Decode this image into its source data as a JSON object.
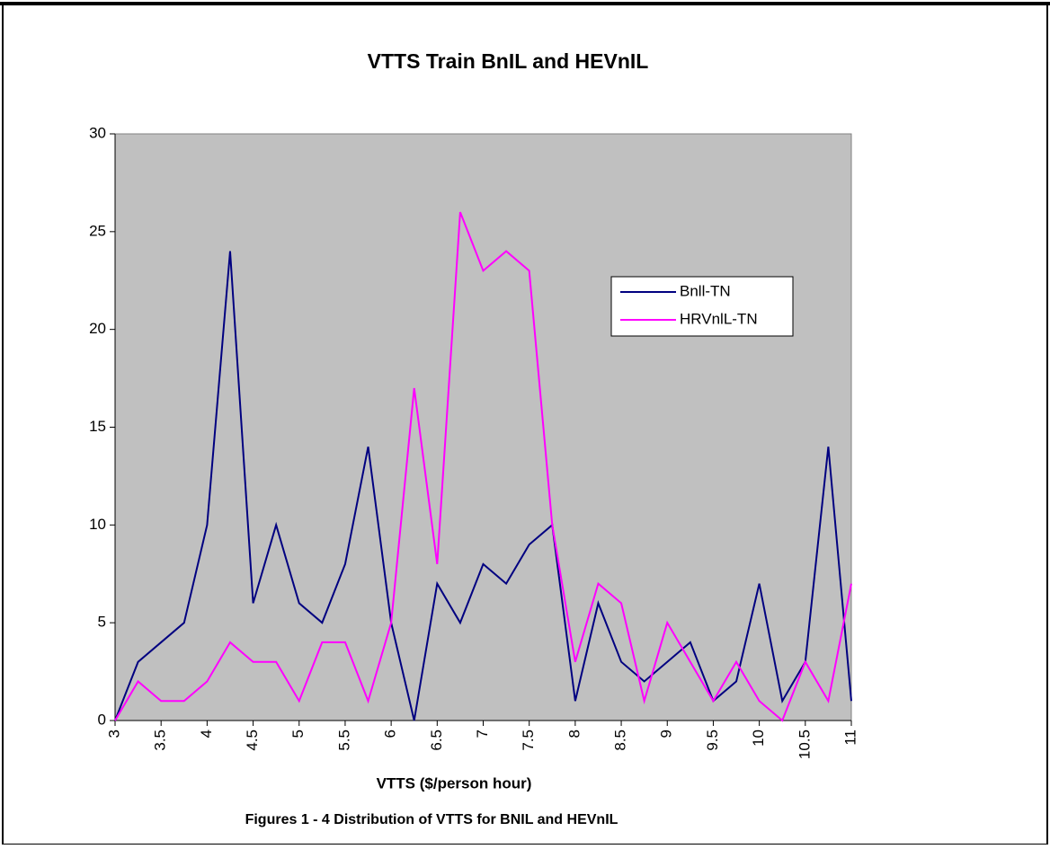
{
  "chart_data": {
    "type": "line",
    "title": "VTTS Train BnIL and HEVnIL",
    "x_label": "VTTS ($/person hour)",
    "x": [
      3,
      3.25,
      3.5,
      3.75,
      4,
      4.25,
      4.5,
      4.75,
      5,
      5.25,
      5.5,
      5.75,
      6,
      6.25,
      6.5,
      6.75,
      7,
      7.25,
      7.5,
      7.75,
      8,
      8.25,
      8.5,
      8.75,
      9,
      9.25,
      9.5,
      9.75,
      10,
      10.25,
      10.5,
      10.75,
      11
    ],
    "series": [
      {
        "name": "Bnll-TN",
        "color": "#000080",
        "values": [
          0,
          3,
          4,
          5,
          10,
          24,
          6,
          10,
          6,
          5,
          8,
          14,
          5,
          0,
          7,
          5,
          8,
          7,
          9,
          10,
          1,
          6,
          3,
          2,
          3,
          4,
          1,
          2,
          7,
          1,
          3,
          14,
          1
        ]
      },
      {
        "name": "HRVnlL-TN",
        "color": "#ff00ff",
        "values": [
          0,
          2,
          1,
          1,
          2,
          4,
          3,
          3,
          1,
          4,
          4,
          1,
          5,
          17,
          8,
          26,
          23,
          24,
          23,
          10,
          3,
          7,
          6,
          1,
          5,
          3,
          1,
          3,
          1,
          0,
          3,
          1,
          7
        ]
      }
    ],
    "xlim": [
      3,
      11
    ],
    "xticks": [
      3,
      3.5,
      4,
      4.5,
      5,
      5.5,
      6,
      6.5,
      7,
      7.5,
      8,
      8.5,
      9,
      9.5,
      10,
      10.5,
      11
    ],
    "ylim": [
      0,
      30
    ],
    "yticks": [
      0,
      5,
      10,
      15,
      20,
      25,
      30
    ],
    "plot_background": "#c0c0c0",
    "legend": "right"
  },
  "caption": "Figures 1 - 4 Distribution of VTTS for BNIL and HEVnIL"
}
